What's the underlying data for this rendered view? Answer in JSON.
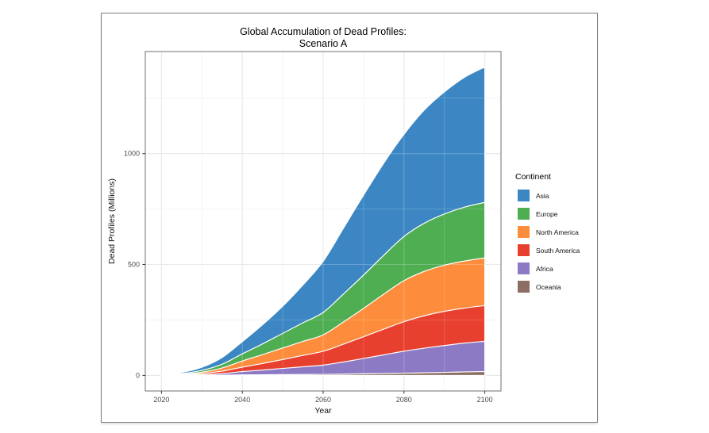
{
  "figure": {
    "title_line1": "Global Accumulation of Dead Profiles:",
    "title_line2": "Scenario A"
  },
  "chart_data": {
    "type": "area",
    "stacked": true,
    "title": "Global Accumulation of Dead Profiles: Scenario A",
    "xlabel": "Year",
    "ylabel": "Dead Profiles (Millions)",
    "legend_title": "Continent",
    "legend_position": "right",
    "grid": true,
    "panel_background": "#ffffff",
    "grid_major_color": "#e3e3e3",
    "grid_minor_color": "#f0f0f0",
    "panel_border_color": "#6f6f6f",
    "area_outline_color": "#ffffff",
    "xlim": [
      2016,
      2104
    ],
    "ylim": [
      -70,
      1460
    ],
    "x_ticks": [
      2020,
      2040,
      2060,
      2080,
      2100
    ],
    "x_minor_ticks": [
      2030,
      2050,
      2070,
      2090
    ],
    "y_ticks": [
      0,
      500,
      1000
    ],
    "y_minor_ticks": [
      250,
      750,
      1250
    ],
    "x": [
      2020,
      2025,
      2030,
      2035,
      2040,
      2045,
      2050,
      2055,
      2060,
      2065,
      2070,
      2075,
      2080,
      2085,
      2090,
      2095,
      2100
    ],
    "series": [
      {
        "name": "Asia",
        "color": "#3c87c3",
        "values": [
          1,
          5,
          14,
          30,
          55,
          86,
          122,
          170,
          230,
          296,
          360,
          415,
          460,
          510,
          550,
          585,
          610
        ]
      },
      {
        "name": "Europe",
        "color": "#4fad52",
        "values": [
          1,
          3,
          8,
          17,
          32,
          48,
          66,
          84,
          101,
          126,
          150,
          175,
          199,
          217,
          231,
          243,
          250
        ]
      },
      {
        "name": "North America",
        "color": "#fd8d3c",
        "values": [
          0.5,
          2,
          6,
          14,
          28,
          40,
          52,
          63,
          74,
          100,
          128,
          158,
          185,
          200,
          208,
          212,
          215
        ]
      },
      {
        "name": "South America",
        "color": "#e8402f",
        "values": [
          0.5,
          2,
          5,
          11,
          20,
          30,
          40,
          51,
          62,
          80,
          98,
          116,
          133,
          146,
          154,
          158,
          161
        ]
      },
      {
        "name": "Africa",
        "color": "#8c7bc4",
        "values": [
          0.3,
          1,
          3,
          7,
          15,
          21,
          28,
          35,
          42,
          55,
          69,
          84,
          99,
          111,
          121,
          130,
          136
        ]
      },
      {
        "name": "Oceania",
        "color": "#8d6e63",
        "values": [
          0.1,
          0.3,
          0.8,
          1.5,
          2.5,
          3.2,
          4,
          4.5,
          5,
          6,
          7.5,
          9,
          10.5,
          12,
          14,
          16,
          18
        ]
      }
    ],
    "totals_by_decade": {
      "2020": 3.4,
      "2040": 152.5,
      "2060": 514,
      "2080": 1087,
      "2100": 1390
    }
  }
}
